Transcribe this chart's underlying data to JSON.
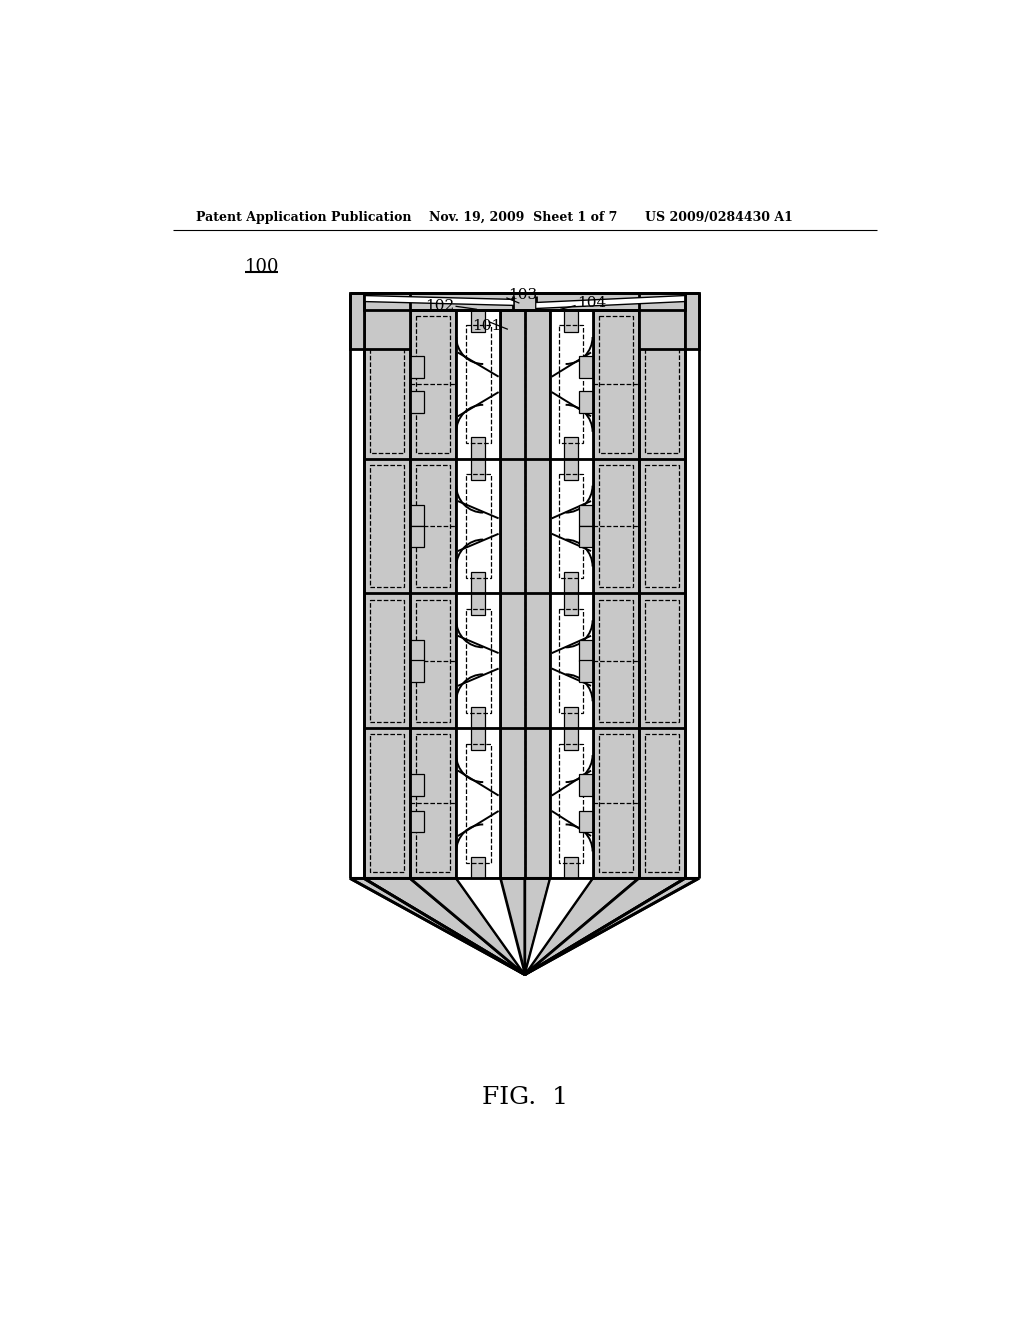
{
  "header_left": "Patent Application Publication",
  "header_center": "Nov. 19, 2009  Sheet 1 of 7",
  "header_right": "US 2009/0284430 A1",
  "figure_label": "FIG.  1",
  "ref_100": "100",
  "ref_101": "101",
  "ref_102": "102",
  "ref_103": "103",
  "ref_104": "104",
  "bg_color": "#ffffff",
  "line_color": "#000000",
  "stipple_color": "#c8c8c8",
  "white_color": "#ffffff"
}
